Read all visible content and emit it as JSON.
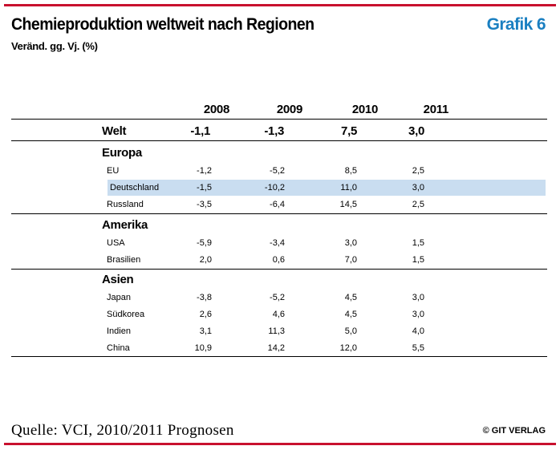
{
  "header": {
    "title": "Chemieproduktion weltweit nach Regionen",
    "subtitle": "Veränd. gg. Vj. (%)",
    "badge": "Grafik 6"
  },
  "table": {
    "years": [
      "2008",
      "2009",
      "2010",
      "2011"
    ],
    "world": {
      "label": "Welt",
      "values": [
        "-1,1",
        "-1,3",
        "7,5",
        "3,0"
      ]
    },
    "groups": [
      {
        "name": "Europa",
        "rows": [
          {
            "label": "EU",
            "values": [
              "-1,2",
              "-5,2",
              "8,5",
              "2,5"
            ]
          },
          {
            "label": "Deutschland",
            "values": [
              "-1,5",
              "-10,2",
              "11,0",
              "3,0"
            ],
            "highlight": true
          },
          {
            "label": "Russland",
            "values": [
              "-3,5",
              "-6,4",
              "14,5",
              "2,5"
            ]
          }
        ]
      },
      {
        "name": "Amerika",
        "rows": [
          {
            "label": "USA",
            "values": [
              "-5,9",
              "-3,4",
              "3,0",
              "1,5"
            ]
          },
          {
            "label": "Brasilien",
            "values": [
              "2,0",
              "0,6",
              "7,0",
              "1,5"
            ]
          }
        ]
      },
      {
        "name": "Asien",
        "rows": [
          {
            "label": "Japan",
            "values": [
              "-3,8",
              "-5,2",
              "4,5",
              "3,0"
            ]
          },
          {
            "label": "Südkorea",
            "values": [
              "2,6",
              "4,6",
              "4,5",
              "3,0"
            ]
          },
          {
            "label": "Indien",
            "values": [
              "3,1",
              "11,3",
              "5,0",
              "4,0"
            ]
          },
          {
            "label": "China",
            "values": [
              "10,9",
              "14,2",
              "12,0",
              "5,5"
            ]
          }
        ]
      }
    ],
    "highlight_color": "#c9ddf0"
  },
  "footer": {
    "source": "Quelle: VCI, 2010/2011 Prognosen",
    "copyright": "© GIT VERLAG"
  },
  "colors": {
    "accent_red": "#c8102e",
    "badge_blue": "#1a7fc1"
  }
}
